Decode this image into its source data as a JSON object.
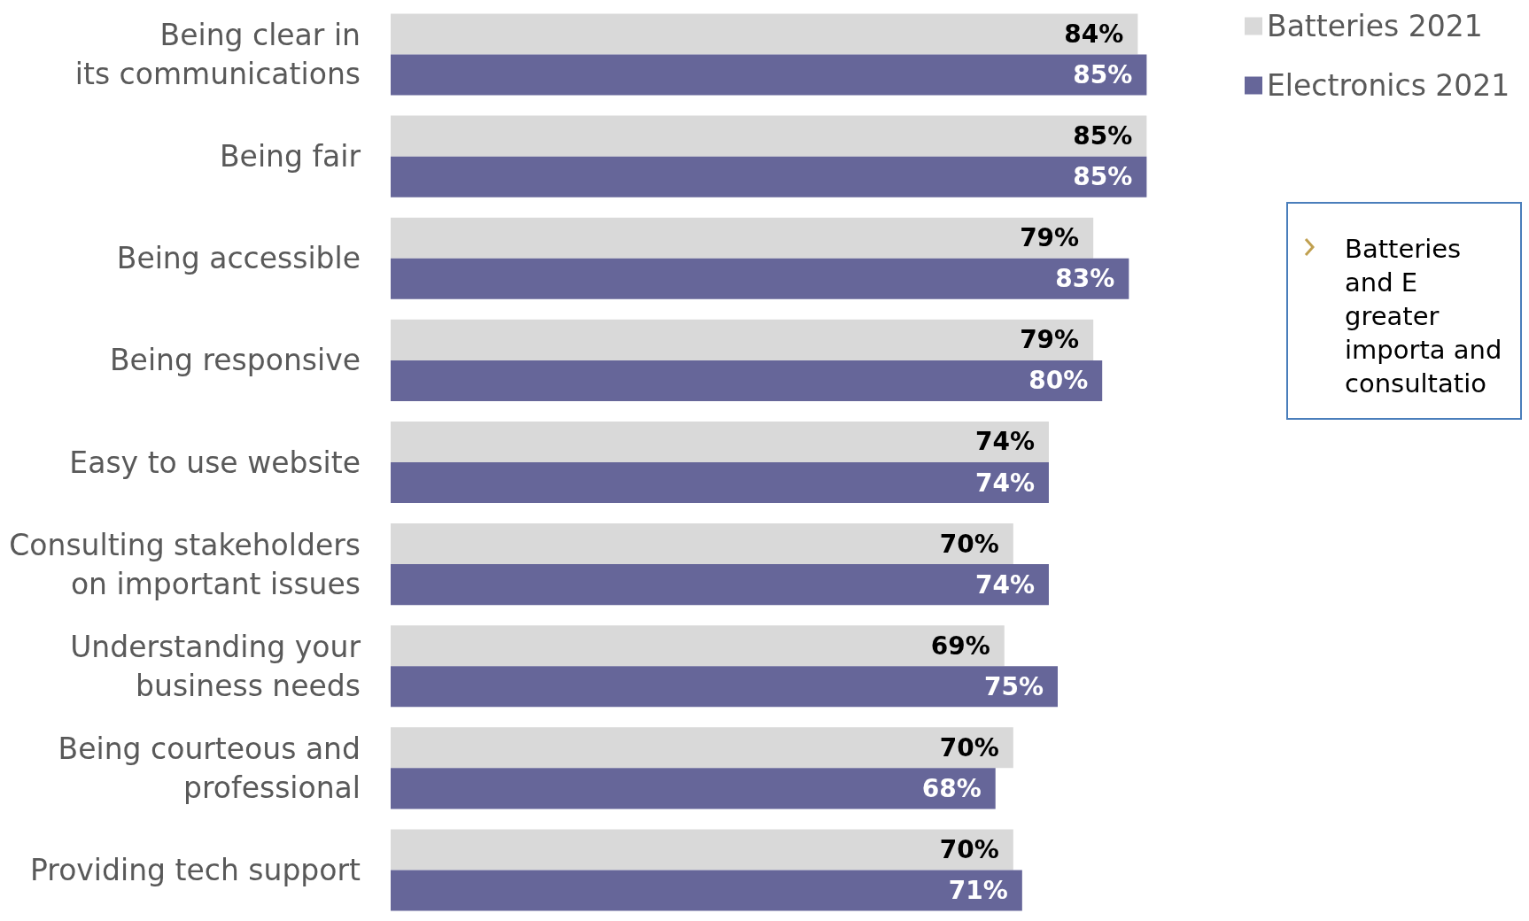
{
  "chart_data": {
    "type": "bar",
    "orientation": "horizontal",
    "categories": [
      "Being clear in\nits communications",
      "Being fair",
      "Being accessible",
      "Being responsive",
      "Easy to use website",
      "Consulting stakeholders\non important issues",
      "Understanding your\nbusiness needs",
      "Being courteous and\nprofessional",
      "Providing tech support"
    ],
    "series": [
      {
        "name": "Batteries 2021",
        "color": "#d9d9d9",
        "values": [
          84,
          85,
          79,
          79,
          74,
          70,
          69,
          70,
          70
        ],
        "value_labels": [
          "84%",
          "85%",
          "79%",
          "79%",
          "74%",
          "70%",
          "69%",
          "70%",
          "70%"
        ]
      },
      {
        "name": "Electronics 2021",
        "color": "#666699",
        "values": [
          85,
          85,
          83,
          80,
          74,
          74,
          75,
          68,
          71
        ],
        "value_labels": [
          "85%",
          "85%",
          "83%",
          "80%",
          "74%",
          "74%",
          "75%",
          "68%",
          "71%"
        ]
      }
    ],
    "legend": "top right",
    "annotations": [
      "Batteries and E greater importa and consultatio"
    ]
  }
}
